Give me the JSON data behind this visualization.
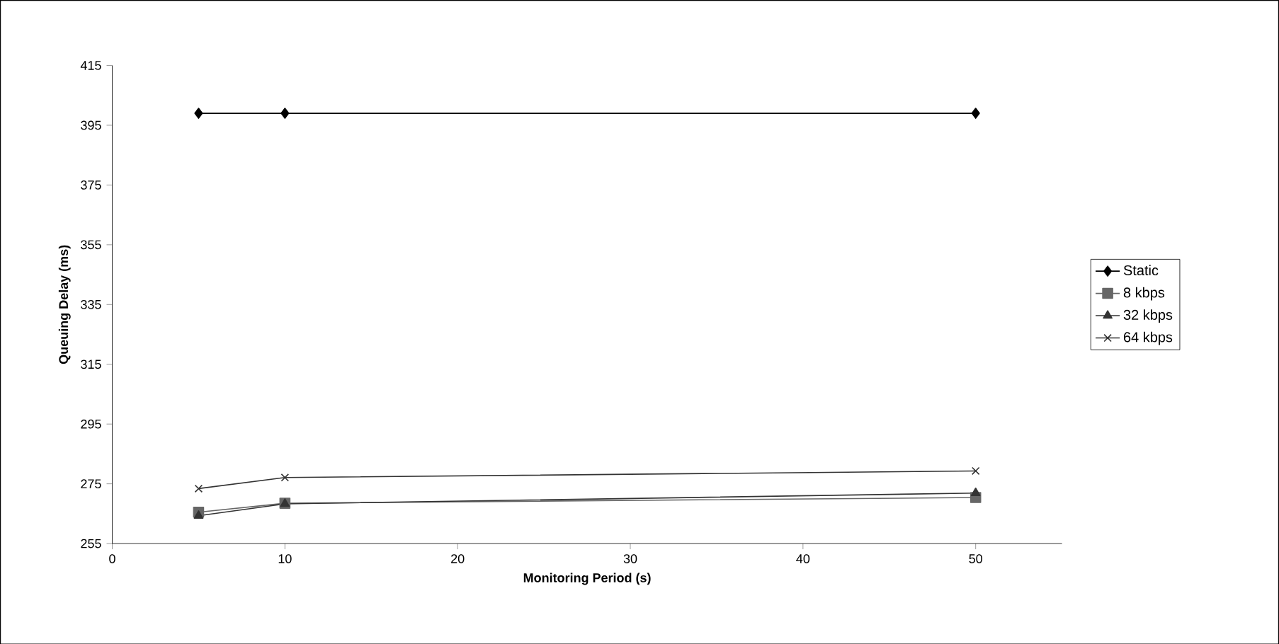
{
  "chart_data": {
    "type": "line",
    "xlabel": "Monitoring Period (s)",
    "ylabel": "Queuing Delay (ms)",
    "x": [
      5,
      10,
      50
    ],
    "series": [
      {
        "name": "Static",
        "color": "#000000",
        "marker": "diamond",
        "values": [
          399,
          399,
          399
        ]
      },
      {
        "name": "8 kbps",
        "color": "#666666",
        "marker": "square",
        "values": [
          265.5,
          268.5,
          270.4
        ]
      },
      {
        "name": "32 kbps",
        "color": "#333333",
        "marker": "triangle",
        "values": [
          264.3,
          268.3,
          271.9
        ]
      },
      {
        "name": "64 kbps",
        "color": "#333333",
        "marker": "cross",
        "values": [
          273.4,
          277.1,
          279.3
        ]
      }
    ],
    "xlim": [
      0,
      55
    ],
    "xticks": [
      0,
      10,
      20,
      30,
      40,
      50
    ],
    "ylim": [
      255,
      415
    ],
    "yticks": [
      255,
      275,
      295,
      315,
      335,
      355,
      375,
      395,
      415
    ],
    "grid": false,
    "legend": "right",
    "line_style": "solid"
  }
}
